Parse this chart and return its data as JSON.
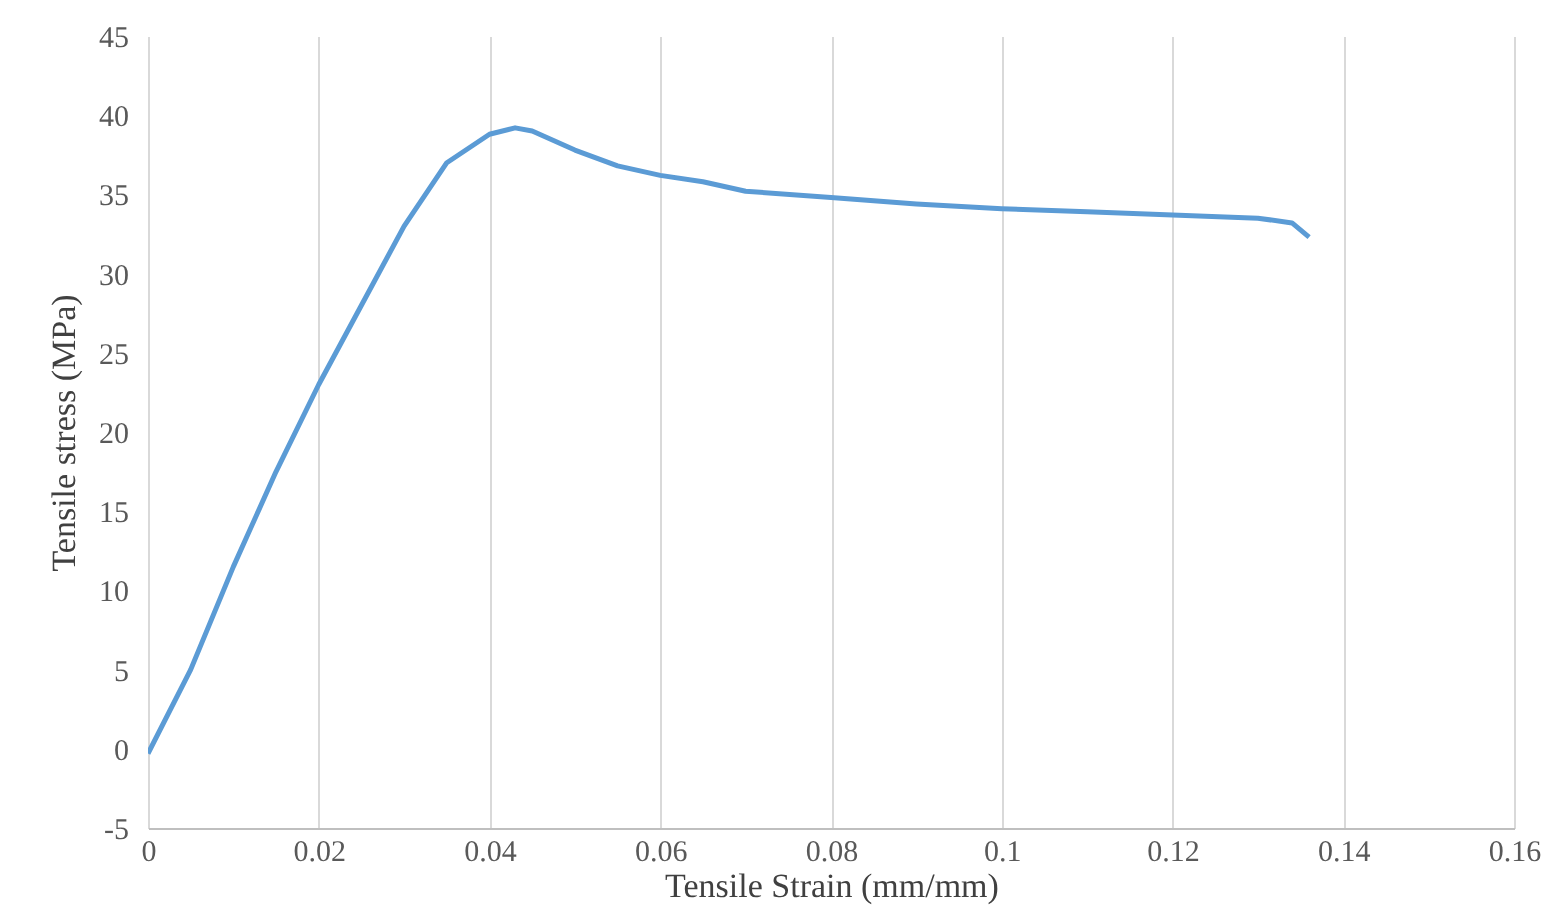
{
  "chart_data": {
    "type": "line",
    "xlabel": "Tensile Strain (mm/mm)",
    "ylabel": "Tensile stress (MPa)",
    "x": [
      0,
      0.005,
      0.01,
      0.015,
      0.02,
      0.025,
      0.03,
      0.035,
      0.04,
      0.043,
      0.045,
      0.05,
      0.055,
      0.06,
      0.065,
      0.07,
      0.08,
      0.09,
      0.1,
      0.11,
      0.12,
      0.13,
      0.134,
      0.136
    ],
    "series": [
      {
        "color": "#5b9bd5",
        "values": [
          -0.3,
          5,
          11.5,
          17.5,
          23,
          28,
          33,
          37,
          38.8,
          39.2,
          39,
          37.8,
          36.8,
          36.2,
          35.8,
          35.2,
          34.8,
          34.4,
          34.1,
          33.9,
          33.7,
          33.5,
          33.2,
          32.3
        ]
      }
    ],
    "xlim": [
      0,
      0.16
    ],
    "xticks": [
      0,
      0.02,
      0.04,
      0.06,
      0.08,
      0.1,
      0.12,
      0.14,
      0.16
    ],
    "ylim": [
      -5,
      45
    ],
    "yticks": [
      -5,
      0,
      5,
      10,
      15,
      20,
      25,
      30,
      35,
      40,
      45
    ],
    "grid": "x",
    "marker": "none",
    "line_style": "solid"
  }
}
